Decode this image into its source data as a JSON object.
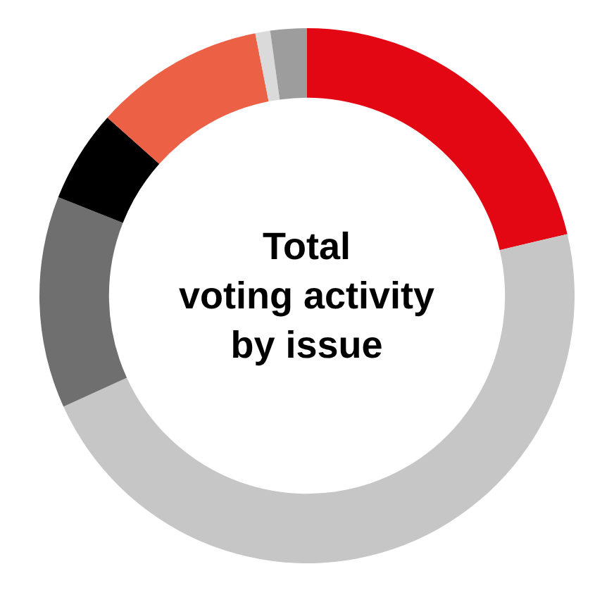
{
  "chart_data": {
    "type": "donut",
    "title": "Total\nvoting activity\nby issue",
    "categories": [
      null,
      null,
      null,
      null,
      null,
      null,
      null
    ],
    "values": [
      21.3,
      46.9,
      12.8,
      5.6,
      10.3,
      0.9,
      2.2
    ],
    "colors": [
      "#e30613",
      "#c6c6c6",
      "#6f6f6f",
      "#000000",
      "#ec6046",
      "#dadada",
      "#9d9d9d"
    ],
    "legend": false
  }
}
